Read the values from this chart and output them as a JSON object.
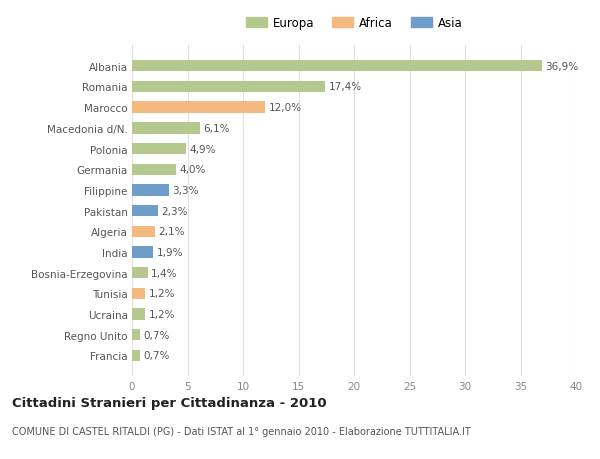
{
  "countries": [
    "Albania",
    "Romania",
    "Marocco",
    "Macedonia d/N.",
    "Polonia",
    "Germania",
    "Filippine",
    "Pakistan",
    "Algeria",
    "India",
    "Bosnia-Erzegovina",
    "Tunisia",
    "Ucraina",
    "Regno Unito",
    "Francia"
  ],
  "values": [
    36.9,
    17.4,
    12.0,
    6.1,
    4.9,
    4.0,
    3.3,
    2.3,
    2.1,
    1.9,
    1.4,
    1.2,
    1.2,
    0.7,
    0.7
  ],
  "labels": [
    "36,9%",
    "17,4%",
    "12,0%",
    "6,1%",
    "4,9%",
    "4,0%",
    "3,3%",
    "2,3%",
    "2,1%",
    "1,9%",
    "1,4%",
    "1,2%",
    "1,2%",
    "0,7%",
    "0,7%"
  ],
  "categories": [
    "Europa",
    "Europa",
    "Africa",
    "Europa",
    "Europa",
    "Europa",
    "Asia",
    "Asia",
    "Africa",
    "Asia",
    "Europa",
    "Africa",
    "Europa",
    "Europa",
    "Europa"
  ],
  "colors": {
    "Europa": "#b5c98e",
    "Africa": "#f4b97f",
    "Asia": "#6e9dc9"
  },
  "legend_labels": [
    "Europa",
    "Africa",
    "Asia"
  ],
  "legend_colors": [
    "#b5c98e",
    "#f4b97f",
    "#6e9dc9"
  ],
  "title": "Cittadini Stranieri per Cittadinanza - 2010",
  "subtitle": "COMUNE DI CASTEL RITALDI (PG) - Dati ISTAT al 1° gennaio 2010 - Elaborazione TUTTITALIA.IT",
  "xlim": [
    0,
    40
  ],
  "xticks": [
    0,
    5,
    10,
    15,
    20,
    25,
    30,
    35,
    40
  ],
  "background_color": "#ffffff",
  "grid_color": "#e0e0e0",
  "bar_height": 0.55,
  "label_fontsize": 7.5,
  "tick_fontsize": 7.5,
  "title_fontsize": 9.5,
  "subtitle_fontsize": 7.0
}
